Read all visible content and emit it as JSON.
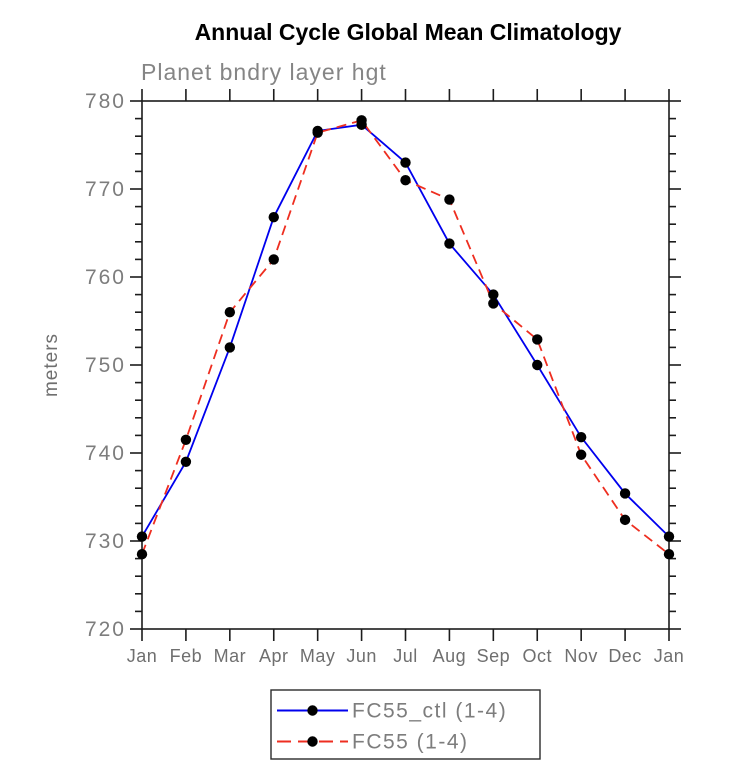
{
  "header": {
    "title": "Annual Cycle Global Mean Climatology",
    "subtitle": "Planet bndry layer hgt"
  },
  "chart_data": {
    "type": "line",
    "title": "Annual Cycle Global Mean Climatology",
    "subtitle": "Planet bndry layer hgt",
    "xlabel": "",
    "ylabel": "meters",
    "categories": [
      "Jan",
      "Feb",
      "Mar",
      "Apr",
      "May",
      "Jun",
      "Jul",
      "Aug",
      "Sep",
      "Oct",
      "Nov",
      "Dec",
      "Jan"
    ],
    "series": [
      {
        "name": "FC55_ctl (1-4)",
        "color": "#0000ee",
        "line_style": "solid",
        "marker": "filled-circle",
        "marker_color": "#000000",
        "values": [
          730.5,
          739,
          752,
          766.8,
          776.6,
          777.3,
          773,
          763.8,
          758,
          750,
          741.8,
          735.4,
          730.5
        ]
      },
      {
        "name": "FC55 (1-4)",
        "color": "#ee2e20",
        "line_style": "dashed",
        "marker": "filled-circle",
        "marker_color": "#000000",
        "values": [
          728.5,
          741.5,
          756,
          762,
          776.4,
          777.8,
          771,
          768.8,
          757,
          752.9,
          739.8,
          732.4,
          728.5
        ]
      }
    ],
    "ylim": [
      720,
      780
    ],
    "ytick_major_interval": 10,
    "ytick_minor_interval": 2,
    "grid": false,
    "legend_position": "bottom-center",
    "axis_color": "#1c1c1c",
    "label_color": "#7d7d7d"
  }
}
